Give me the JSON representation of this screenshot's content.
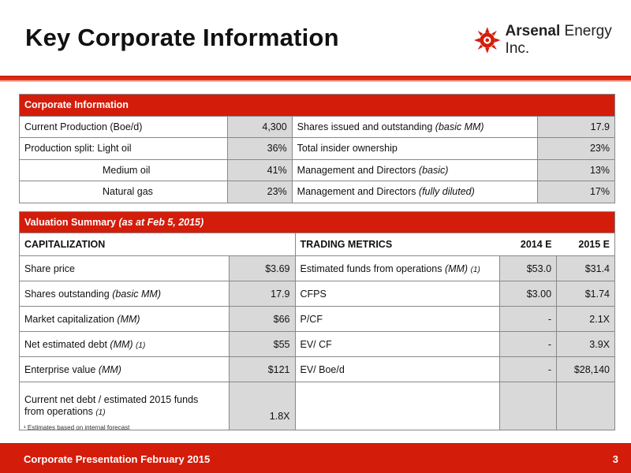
{
  "page": {
    "title": "Key Corporate Information",
    "logo_text_bold": "Arsenal",
    "logo_text_rest": " Energy Inc.",
    "footnote": "¹ Estimates based on internal forecast",
    "footer_text": "Corporate Presentation February 2015",
    "page_number": "3"
  },
  "corporate": {
    "header": "Corporate Information",
    "rows": [
      {
        "l_label": "Current Production (Boe/d)",
        "l_value": "4,300",
        "r_label": "Shares issued and outstanding ",
        "r_label_it": "(basic MM)",
        "r_value": "17.9"
      },
      {
        "l_label": "Production split:  Light oil",
        "l_value": "36%",
        "r_label": "Total insider ownership",
        "r_label_it": "",
        "r_value": "23%"
      },
      {
        "l_label": "Medium oil",
        "l_value": "41%",
        "r_label": "Management and Directors ",
        "r_label_it": "(basic)",
        "r_value": "13%"
      },
      {
        "l_label": "Natural gas",
        "l_value": "23%",
        "r_label": "Management and Directors ",
        "r_label_it": "(fully diluted)",
        "r_value": "17%"
      }
    ]
  },
  "valuation": {
    "header": "Valuation Summary ",
    "header_it": "(as at Feb 5, 2015)",
    "cap_title": "CAPITALIZATION",
    "trading_title": "TRADING METRICS",
    "col_2014": "2014 E",
    "col_2015": "2015 E",
    "rows": [
      {
        "l_label": "Share price",
        "l_it": "",
        "l_sub": "",
        "l_value": "$3.69",
        "r_label": "Estimated funds from operations ",
        "r_it": "(MM)",
        "r_sub": "(1)",
        "v2014": "$53.0",
        "v2015": "$31.4"
      },
      {
        "l_label": "Shares outstanding ",
        "l_it": "(basic MM)",
        "l_sub": "",
        "l_value": "17.9",
        "r_label": "CFPS",
        "r_it": "",
        "r_sub": "",
        "v2014": "$3.00",
        "v2015": "$1.74"
      },
      {
        "l_label": "Market capitalization ",
        "l_it": "(MM)",
        "l_sub": "",
        "l_value": "$66",
        "r_label": "P/CF",
        "r_it": "",
        "r_sub": "",
        "v2014": "-",
        "v2015": "2.1X"
      },
      {
        "l_label": "Net estimated debt ",
        "l_it": "(MM)",
        "l_sub": "(1)",
        "l_value": "$55",
        "r_label": "EV/ CF",
        "r_it": "",
        "r_sub": "",
        "v2014": "-",
        "v2015": "3.9X"
      },
      {
        "l_label": "Enterprise value ",
        "l_it": "(MM)",
        "l_sub": "",
        "l_value": "$121",
        "r_label": "EV/ Boe/d",
        "r_it": "",
        "r_sub": "",
        "v2014": "-",
        "v2015": "$28,140"
      }
    ],
    "last_row": {
      "l_label_1": "Current net debt / estimated 2015 funds",
      "l_label_2": "from operations ",
      "l_sub": "(1)",
      "l_value": "1.8X"
    }
  },
  "colors": {
    "brand_red": "#d41c0a",
    "value_cell": "#d9d9d9"
  }
}
